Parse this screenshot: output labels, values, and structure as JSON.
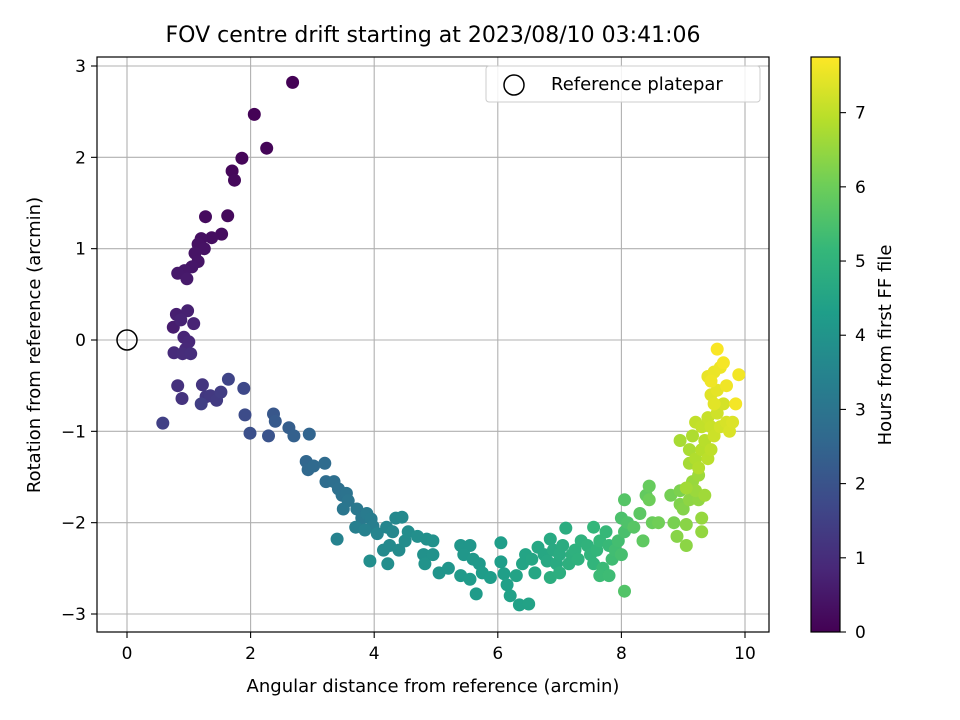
{
  "chart_data": {
    "type": "scatter",
    "title": "FOV centre drift starting at 2023/08/10 03:41:06",
    "xlabel": "Angular distance from reference (arcmin)",
    "ylabel": "Rotation from reference (arcmin)",
    "xlim": [
      -0.5,
      10.4
    ],
    "ylim": [
      -3.2,
      3.1
    ],
    "xticks": [
      0,
      2,
      4,
      6,
      8,
      10
    ],
    "yticks": [
      -3,
      -2,
      -1,
      0,
      1,
      2,
      3
    ],
    "grid": true,
    "legend": {
      "placement": "top-right",
      "entries": [
        "Reference platepar"
      ]
    },
    "reference_point": {
      "x": 0,
      "y": 0,
      "label": "Reference platepar"
    },
    "colorbar": {
      "label": "Hours from first FF file",
      "range": [
        0,
        7.75
      ],
      "ticks": [
        0,
        1,
        2,
        3,
        4,
        5,
        6,
        7
      ],
      "colormap": "viridis"
    },
    "colormap_stops": [
      "#440154",
      "#482878",
      "#3e4989",
      "#31688e",
      "#26828e",
      "#1f9e89",
      "#35b779",
      "#6ece58",
      "#b5de2b",
      "#fde725"
    ],
    "series": [
      {
        "columns": [
          "x",
          "y",
          "hours"
        ],
        "points": [
          [
            2.68,
            2.82,
            0.02
          ],
          [
            2.06,
            2.47,
            0.05
          ],
          [
            2.26,
            2.1,
            0.08
          ],
          [
            1.86,
            1.99,
            0.11
          ],
          [
            1.7,
            1.85,
            0.14
          ],
          [
            1.74,
            1.75,
            0.17
          ],
          [
            1.63,
            1.36,
            0.2
          ],
          [
            1.27,
            1.35,
            0.23
          ],
          [
            1.53,
            1.16,
            0.26
          ],
          [
            1.37,
            1.12,
            0.29
          ],
          [
            1.2,
            1.11,
            0.32
          ],
          [
            1.15,
            1.05,
            0.35
          ],
          [
            1.25,
            1.0,
            0.38
          ],
          [
            1.1,
            0.95,
            0.41
          ],
          [
            1.15,
            0.86,
            0.44
          ],
          [
            1.05,
            0.8,
            0.47
          ],
          [
            0.93,
            0.76,
            0.5
          ],
          [
            0.82,
            0.73,
            0.53
          ],
          [
            0.97,
            0.67,
            0.56
          ],
          [
            0.75,
            0.14,
            0.62
          ],
          [
            0.8,
            0.28,
            0.66
          ],
          [
            0.98,
            0.32,
            0.7
          ],
          [
            0.87,
            0.22,
            0.74
          ],
          [
            1.08,
            0.18,
            0.78
          ],
          [
            0.92,
            0.03,
            0.82
          ],
          [
            1.0,
            -0.02,
            0.86
          ],
          [
            0.95,
            -0.1,
            0.9
          ],
          [
            0.76,
            -0.14,
            0.94
          ],
          [
            0.9,
            -0.15,
            0.98
          ],
          [
            1.03,
            -0.15,
            1.02
          ],
          [
            0.82,
            -0.5,
            1.1
          ],
          [
            0.89,
            -0.64,
            1.15
          ],
          [
            1.22,
            -0.49,
            1.2
          ],
          [
            1.28,
            -0.62,
            1.25
          ],
          [
            1.35,
            -0.61,
            1.3
          ],
          [
            1.45,
            -0.66,
            1.35
          ],
          [
            1.52,
            -0.57,
            1.4
          ],
          [
            1.2,
            -0.7,
            1.45
          ],
          [
            0.58,
            -0.91,
            1.5
          ],
          [
            1.64,
            -0.43,
            1.6
          ],
          [
            1.89,
            -0.53,
            1.7
          ],
          [
            1.91,
            -0.82,
            1.8
          ],
          [
            1.99,
            -1.02,
            1.9
          ],
          [
            2.29,
            -1.05,
            2.0
          ],
          [
            2.37,
            -0.81,
            2.1
          ],
          [
            2.4,
            -0.89,
            2.2
          ],
          [
            2.62,
            -0.96,
            2.3
          ],
          [
            2.7,
            -1.05,
            2.4
          ],
          [
            2.95,
            -1.03,
            2.5
          ],
          [
            2.9,
            -1.33,
            2.55
          ],
          [
            2.93,
            -1.42,
            2.6
          ],
          [
            3.02,
            -1.38,
            2.65
          ],
          [
            3.2,
            -1.35,
            2.7
          ],
          [
            3.22,
            -1.55,
            2.75
          ],
          [
            3.35,
            -1.55,
            2.8
          ],
          [
            3.42,
            -1.63,
            2.85
          ],
          [
            3.48,
            -1.7,
            2.9
          ],
          [
            3.55,
            -1.68,
            2.95
          ],
          [
            3.58,
            -1.76,
            3.0
          ],
          [
            3.5,
            -1.85,
            3.05
          ],
          [
            3.72,
            -1.85,
            3.1
          ],
          [
            3.8,
            -1.95,
            3.15
          ],
          [
            3.88,
            -1.9,
            3.2
          ],
          [
            3.95,
            -1.96,
            3.25
          ],
          [
            3.98,
            -2.04,
            3.3
          ],
          [
            3.7,
            -2.05,
            3.35
          ],
          [
            3.85,
            -2.08,
            3.4
          ],
          [
            3.4,
            -2.18,
            3.45
          ],
          [
            4.05,
            -2.12,
            3.5
          ],
          [
            4.2,
            -2.05,
            3.55
          ],
          [
            4.3,
            -2.1,
            3.6
          ],
          [
            4.35,
            -1.95,
            3.62
          ],
          [
            4.45,
            -1.94,
            3.65
          ],
          [
            4.25,
            -2.25,
            3.68
          ],
          [
            4.15,
            -2.3,
            3.7
          ],
          [
            4.4,
            -2.3,
            3.72
          ],
          [
            4.5,
            -2.2,
            3.75
          ],
          [
            4.55,
            -2.1,
            3.78
          ],
          [
            3.93,
            -2.42,
            3.8
          ],
          [
            4.22,
            -2.45,
            3.82
          ],
          [
            4.7,
            -2.15,
            3.85
          ],
          [
            4.85,
            -2.18,
            3.88
          ],
          [
            4.95,
            -2.2,
            3.9
          ],
          [
            4.8,
            -2.35,
            3.92
          ],
          [
            4.95,
            -2.35,
            3.95
          ],
          [
            4.82,
            -2.45,
            3.97
          ],
          [
            5.05,
            -2.55,
            4.0
          ],
          [
            5.2,
            -2.5,
            4.02
          ],
          [
            5.4,
            -2.25,
            4.05
          ],
          [
            5.55,
            -2.25,
            4.07
          ],
          [
            5.45,
            -2.35,
            4.1
          ],
          [
            5.6,
            -2.4,
            4.12
          ],
          [
            5.7,
            -2.45,
            4.15
          ],
          [
            5.4,
            -2.58,
            4.17
          ],
          [
            5.55,
            -2.62,
            4.2
          ],
          [
            5.65,
            -2.78,
            4.22
          ],
          [
            5.75,
            -2.55,
            4.25
          ],
          [
            5.88,
            -2.6,
            4.27
          ],
          [
            6.05,
            -2.22,
            4.3
          ],
          [
            6.05,
            -2.43,
            4.32
          ],
          [
            6.1,
            -2.56,
            4.35
          ],
          [
            6.15,
            -2.68,
            4.38
          ],
          [
            6.2,
            -2.8,
            4.4
          ],
          [
            6.35,
            -2.9,
            4.42
          ],
          [
            6.5,
            -2.89,
            4.45
          ],
          [
            6.3,
            -2.58,
            4.47
          ],
          [
            6.4,
            -2.45,
            4.5
          ],
          [
            6.45,
            -2.35,
            4.52
          ],
          [
            6.55,
            -2.4,
            4.55
          ],
          [
            6.6,
            -2.55,
            4.57
          ],
          [
            6.65,
            -2.27,
            4.6
          ],
          [
            6.75,
            -2.35,
            4.62
          ],
          [
            6.8,
            -2.42,
            4.65
          ],
          [
            6.85,
            -2.18,
            4.67
          ],
          [
            6.9,
            -2.3,
            4.7
          ],
          [
            6.95,
            -2.45,
            4.72
          ],
          [
            7.0,
            -2.35,
            4.75
          ],
          [
            7.05,
            -2.25,
            4.77
          ],
          [
            7.1,
            -2.06,
            4.8
          ],
          [
            6.85,
            -2.6,
            4.82
          ],
          [
            7.0,
            -2.55,
            4.85
          ],
          [
            7.15,
            -2.45,
            4.88
          ],
          [
            7.2,
            -2.35,
            4.9
          ],
          [
            7.25,
            -2.3,
            4.92
          ],
          [
            7.3,
            -2.4,
            4.95
          ],
          [
            7.35,
            -2.2,
            4.97
          ],
          [
            7.45,
            -2.25,
            5.0
          ],
          [
            7.5,
            -2.35,
            5.03
          ],
          [
            7.55,
            -2.45,
            5.06
          ],
          [
            7.6,
            -2.3,
            5.09
          ],
          [
            7.55,
            -2.05,
            5.12
          ],
          [
            7.65,
            -2.2,
            5.15
          ],
          [
            7.75,
            -2.1,
            5.18
          ],
          [
            7.8,
            -2.25,
            5.21
          ],
          [
            7.7,
            -2.5,
            5.24
          ],
          [
            7.65,
            -2.58,
            5.27
          ],
          [
            7.8,
            -2.58,
            5.3
          ],
          [
            7.85,
            -2.4,
            5.33
          ],
          [
            7.9,
            -2.3,
            5.36
          ],
          [
            7.95,
            -2.2,
            5.4
          ],
          [
            8.0,
            -2.35,
            5.44
          ],
          [
            8.05,
            -2.1,
            5.48
          ],
          [
            8.0,
            -1.95,
            5.52
          ],
          [
            8.1,
            -2.0,
            5.56
          ],
          [
            8.05,
            -2.75,
            5.6
          ],
          [
            8.05,
            -1.75,
            5.65
          ],
          [
            8.2,
            -2.05,
            5.7
          ],
          [
            8.3,
            -1.9,
            5.75
          ],
          [
            8.35,
            -2.2,
            5.8
          ],
          [
            8.4,
            -1.7,
            5.85
          ],
          [
            8.45,
            -1.6,
            5.9
          ],
          [
            8.5,
            -2.0,
            5.95
          ],
          [
            8.45,
            -1.75,
            6.0
          ],
          [
            8.6,
            -2.0,
            6.05
          ],
          [
            8.8,
            -1.7,
            6.1
          ],
          [
            8.85,
            -2.0,
            6.15
          ],
          [
            8.95,
            -1.65,
            6.2
          ],
          [
            8.95,
            -1.8,
            6.25
          ],
          [
            9.0,
            -1.85,
            6.3
          ],
          [
            8.9,
            -2.15,
            6.33
          ],
          [
            9.05,
            -2.02,
            6.36
          ],
          [
            9.05,
            -2.25,
            6.39
          ],
          [
            9.1,
            -1.75,
            6.42
          ],
          [
            9.25,
            -1.75,
            6.45
          ],
          [
            9.3,
            -2.1,
            6.48
          ],
          [
            9.3,
            -1.95,
            6.51
          ],
          [
            9.15,
            -1.55,
            6.54
          ],
          [
            9.2,
            -1.65,
            6.57
          ],
          [
            9.25,
            -1.48,
            6.6
          ],
          [
            9.35,
            -1.7,
            6.63
          ],
          [
            9.05,
            -1.62,
            6.66
          ],
          [
            9.1,
            -1.35,
            6.7
          ],
          [
            8.95,
            -1.1,
            6.73
          ],
          [
            9.1,
            -1.2,
            6.76
          ],
          [
            9.15,
            -1.05,
            6.8
          ],
          [
            9.2,
            -1.3,
            6.83
          ],
          [
            9.25,
            -1.4,
            6.86
          ],
          [
            9.3,
            -1.2,
            6.9
          ],
          [
            9.35,
            -1.1,
            6.93
          ],
          [
            9.4,
            -1.3,
            6.96
          ],
          [
            9.45,
            -1.2,
            7.0
          ],
          [
            9.2,
            -0.9,
            7.03
          ],
          [
            9.3,
            -0.95,
            7.06
          ],
          [
            9.4,
            -0.85,
            7.1
          ],
          [
            9.45,
            -0.95,
            7.13
          ],
          [
            9.5,
            -1.05,
            7.16
          ],
          [
            9.55,
            -0.8,
            7.2
          ],
          [
            9.6,
            -0.95,
            7.23
          ],
          [
            9.65,
            -0.7,
            7.26
          ],
          [
            9.7,
            -0.9,
            7.3
          ],
          [
            9.75,
            -1.0,
            7.33
          ],
          [
            9.8,
            -0.9,
            7.36
          ],
          [
            9.45,
            -0.6,
            7.4
          ],
          [
            9.5,
            -0.7,
            7.43
          ],
          [
            9.55,
            -0.55,
            7.46
          ],
          [
            9.4,
            -0.4,
            7.5
          ],
          [
            9.5,
            -0.35,
            7.53
          ],
          [
            9.6,
            -0.3,
            7.56
          ],
          [
            9.45,
            -0.45,
            7.58
          ],
          [
            9.7,
            -0.5,
            7.6
          ],
          [
            9.9,
            -0.38,
            7.62
          ],
          [
            9.85,
            -0.7,
            7.64
          ],
          [
            9.65,
            -0.25,
            7.66
          ],
          [
            9.55,
            -0.1,
            7.7
          ]
        ]
      }
    ]
  }
}
